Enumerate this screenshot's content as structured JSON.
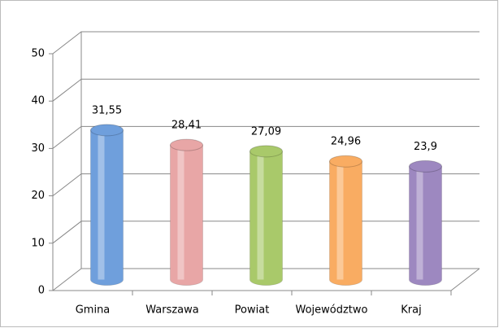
{
  "chart_data": {
    "type": "bar3d",
    "categories": [
      "Gmina",
      "Warszawa",
      "Powiat",
      "Województwo",
      "Kraj"
    ],
    "values": [
      31.55,
      28.41,
      27.09,
      24.96,
      23.9
    ],
    "value_labels": [
      "31,55",
      "28,41",
      "27,09",
      "24,96",
      "23,9"
    ],
    "colors": [
      "#6f9fdc",
      "#e8a6a6",
      "#a9c96a",
      "#f9ac62",
      "#9d88c0"
    ],
    "ylim": [
      0,
      50
    ],
    "yticks": [
      0,
      10,
      20,
      30,
      40,
      50
    ],
    "grid": true
  }
}
